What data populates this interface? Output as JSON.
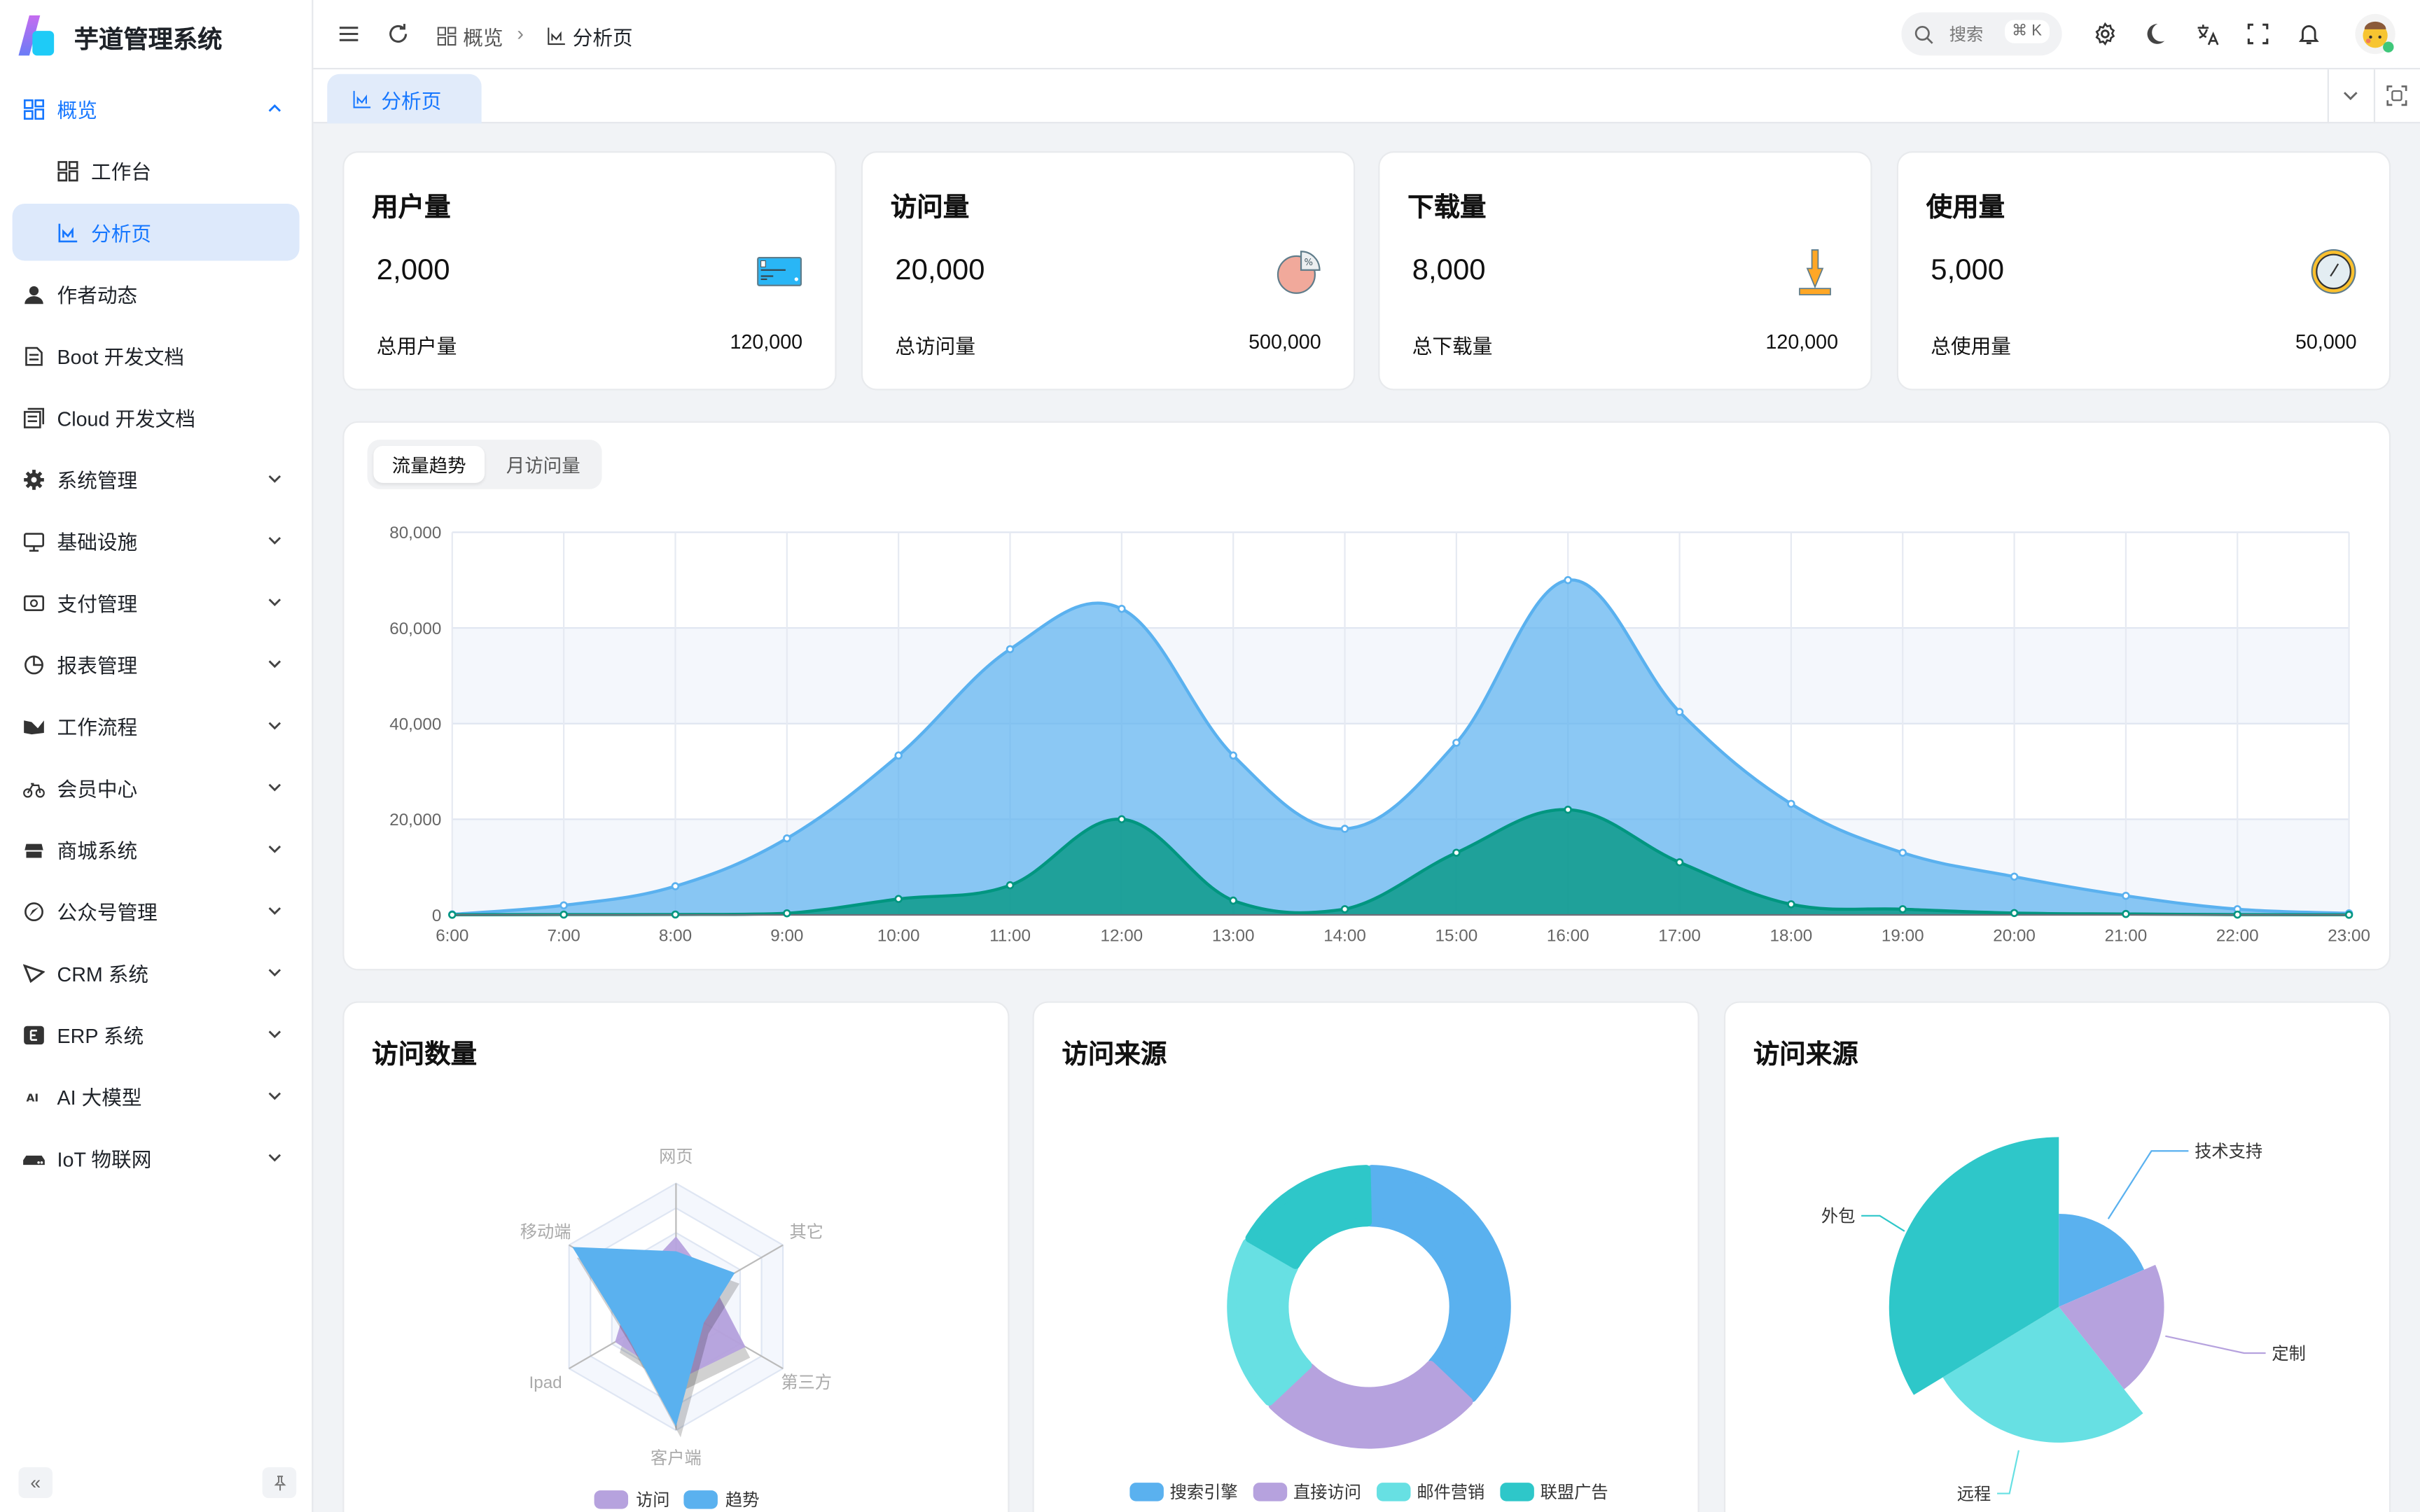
{
  "app": {
    "title": "芋道管理系统"
  },
  "sidebar": {
    "items": [
      {
        "label": "概览",
        "icon": "dashboard-grid-icon",
        "expand": "up",
        "state": "open"
      },
      {
        "label": "工作台",
        "icon": "dashboard-grid-icon",
        "sub": true
      },
      {
        "label": "分析页",
        "icon": "area-chart-icon",
        "sub": true,
        "state": "active"
      },
      {
        "label": "作者动态",
        "icon": "user-icon"
      },
      {
        "label": "Boot 开发文档",
        "icon": "document-icon"
      },
      {
        "label": "Cloud 开发文档",
        "icon": "documents-icon"
      },
      {
        "label": "系统管理",
        "icon": "gear-icon",
        "expand": "down"
      },
      {
        "label": "基础设施",
        "icon": "monitor-icon",
        "expand": "down"
      },
      {
        "label": "支付管理",
        "icon": "payment-icon",
        "expand": "down"
      },
      {
        "label": "报表管理",
        "icon": "pie-chart-icon",
        "expand": "down"
      },
      {
        "label": "工作流程",
        "icon": "workflow-icon",
        "expand": "down"
      },
      {
        "label": "会员中心",
        "icon": "bicycle-icon",
        "expand": "down"
      },
      {
        "label": "商城系统",
        "icon": "shop-icon",
        "expand": "down"
      },
      {
        "label": "公众号管理",
        "icon": "compass-icon",
        "expand": "down"
      },
      {
        "label": "CRM 系统",
        "icon": "crm-icon",
        "expand": "down"
      },
      {
        "label": "ERP 系统",
        "icon": "erp-icon",
        "expand": "down"
      },
      {
        "label": "AI 大模型",
        "icon": "ai-icon",
        "expand": "down"
      },
      {
        "label": "IoT 物联网",
        "icon": "router-icon",
        "expand": "down"
      }
    ]
  },
  "header": {
    "breadcrumb": [
      {
        "label": "概览",
        "icon": "dashboard-grid-icon"
      },
      {
        "label": "分析页",
        "icon": "area-chart-icon"
      }
    ],
    "search": {
      "placeholder": "搜索",
      "shortcut": "⌘ K"
    },
    "icons": [
      "gear-icon",
      "moon-icon",
      "translate-icon",
      "fullscreen-icon",
      "bell-icon"
    ]
  },
  "tabs": [
    {
      "label": "分析页",
      "active": true
    }
  ],
  "stats": [
    {
      "title": "用户量",
      "value": "2,000",
      "total_label": "总用户量",
      "total": "120,000",
      "icon": "credit-card-icon"
    },
    {
      "title": "访问量",
      "value": "20,000",
      "total_label": "总访问量",
      "total": "500,000",
      "icon": "pie-percent-icon"
    },
    {
      "title": "下载量",
      "value": "8,000",
      "total_label": "总下载量",
      "total": "120,000",
      "icon": "download-icon"
    },
    {
      "title": "使用量",
      "value": "5,000",
      "total_label": "总使用量",
      "total": "50,000",
      "icon": "clock-icon"
    }
  ],
  "trend": {
    "tabs": [
      {
        "label": "流量趋势",
        "active": true
      },
      {
        "label": "月访问量"
      }
    ]
  },
  "chart_data": [
    {
      "type": "area",
      "categories": [
        "6:00",
        "7:00",
        "8:00",
        "9:00",
        "10:00",
        "11:00",
        "12:00",
        "13:00",
        "14:00",
        "15:00",
        "16:00",
        "17:00",
        "18:00",
        "19:00",
        "20:00",
        "21:00",
        "22:00",
        "23:00"
      ],
      "ylim": [
        0,
        80000
      ],
      "yticks": [
        "0",
        "20,000",
        "40,000",
        "60,000",
        "80,000"
      ],
      "grid": true,
      "series": [
        {
          "values": [
            111,
            2000,
            6000,
            16000,
            33333,
            55555,
            64000,
            33333,
            18000,
            36000,
            70000,
            42444,
            23222,
            13000,
            8000,
            4000,
            1200,
            333
          ],
          "color": "#5ab1ef"
        },
        {
          "values": [
            33,
            66,
            88,
            333,
            3333,
            6200,
            20000,
            3000,
            1200,
            13000,
            22000,
            11000,
            2221,
            1201,
            390,
            198,
            60,
            30
          ],
          "color": "#019680"
        }
      ]
    },
    {
      "type": "radar",
      "title": "访问数量",
      "indicators": [
        "网页",
        "移动端",
        "Ipad",
        "客户端",
        "第三方",
        "其它"
      ],
      "max": 100,
      "series": [
        {
          "name": "访问",
          "values": [
            57,
            40,
            57,
            60,
            65,
            35
          ],
          "color": "#b6a2de"
        },
        {
          "name": "趋势",
          "values": [
            45,
            97,
            46,
            97,
            26,
            55
          ],
          "color": "#5ab1ef"
        }
      ],
      "legend": "bottom"
    },
    {
      "type": "pie",
      "title": "访问来源",
      "donut": true,
      "slices": [
        {
          "name": "搜索引擎",
          "value": 1048,
          "color": "#5ab1ef"
        },
        {
          "name": "直接访问",
          "value": 735,
          "color": "#b6a2de"
        },
        {
          "name": "邮件营销",
          "value": 580,
          "color": "#67e0e3"
        },
        {
          "name": "联盟广告",
          "value": 484,
          "color": "#2ec7c9"
        }
      ],
      "legend": "bottom"
    },
    {
      "type": "pie",
      "title": "访问来源",
      "rose": true,
      "slices": [
        {
          "name": "技术支持",
          "value": 274,
          "color": "#5ab1ef"
        },
        {
          "name": "定制",
          "value": 310,
          "color": "#b6a2de"
        },
        {
          "name": "远程",
          "value": 400,
          "color": "#67e0e3"
        },
        {
          "name": "外包",
          "value": 500,
          "color": "#2ec7c9"
        }
      ]
    }
  ]
}
